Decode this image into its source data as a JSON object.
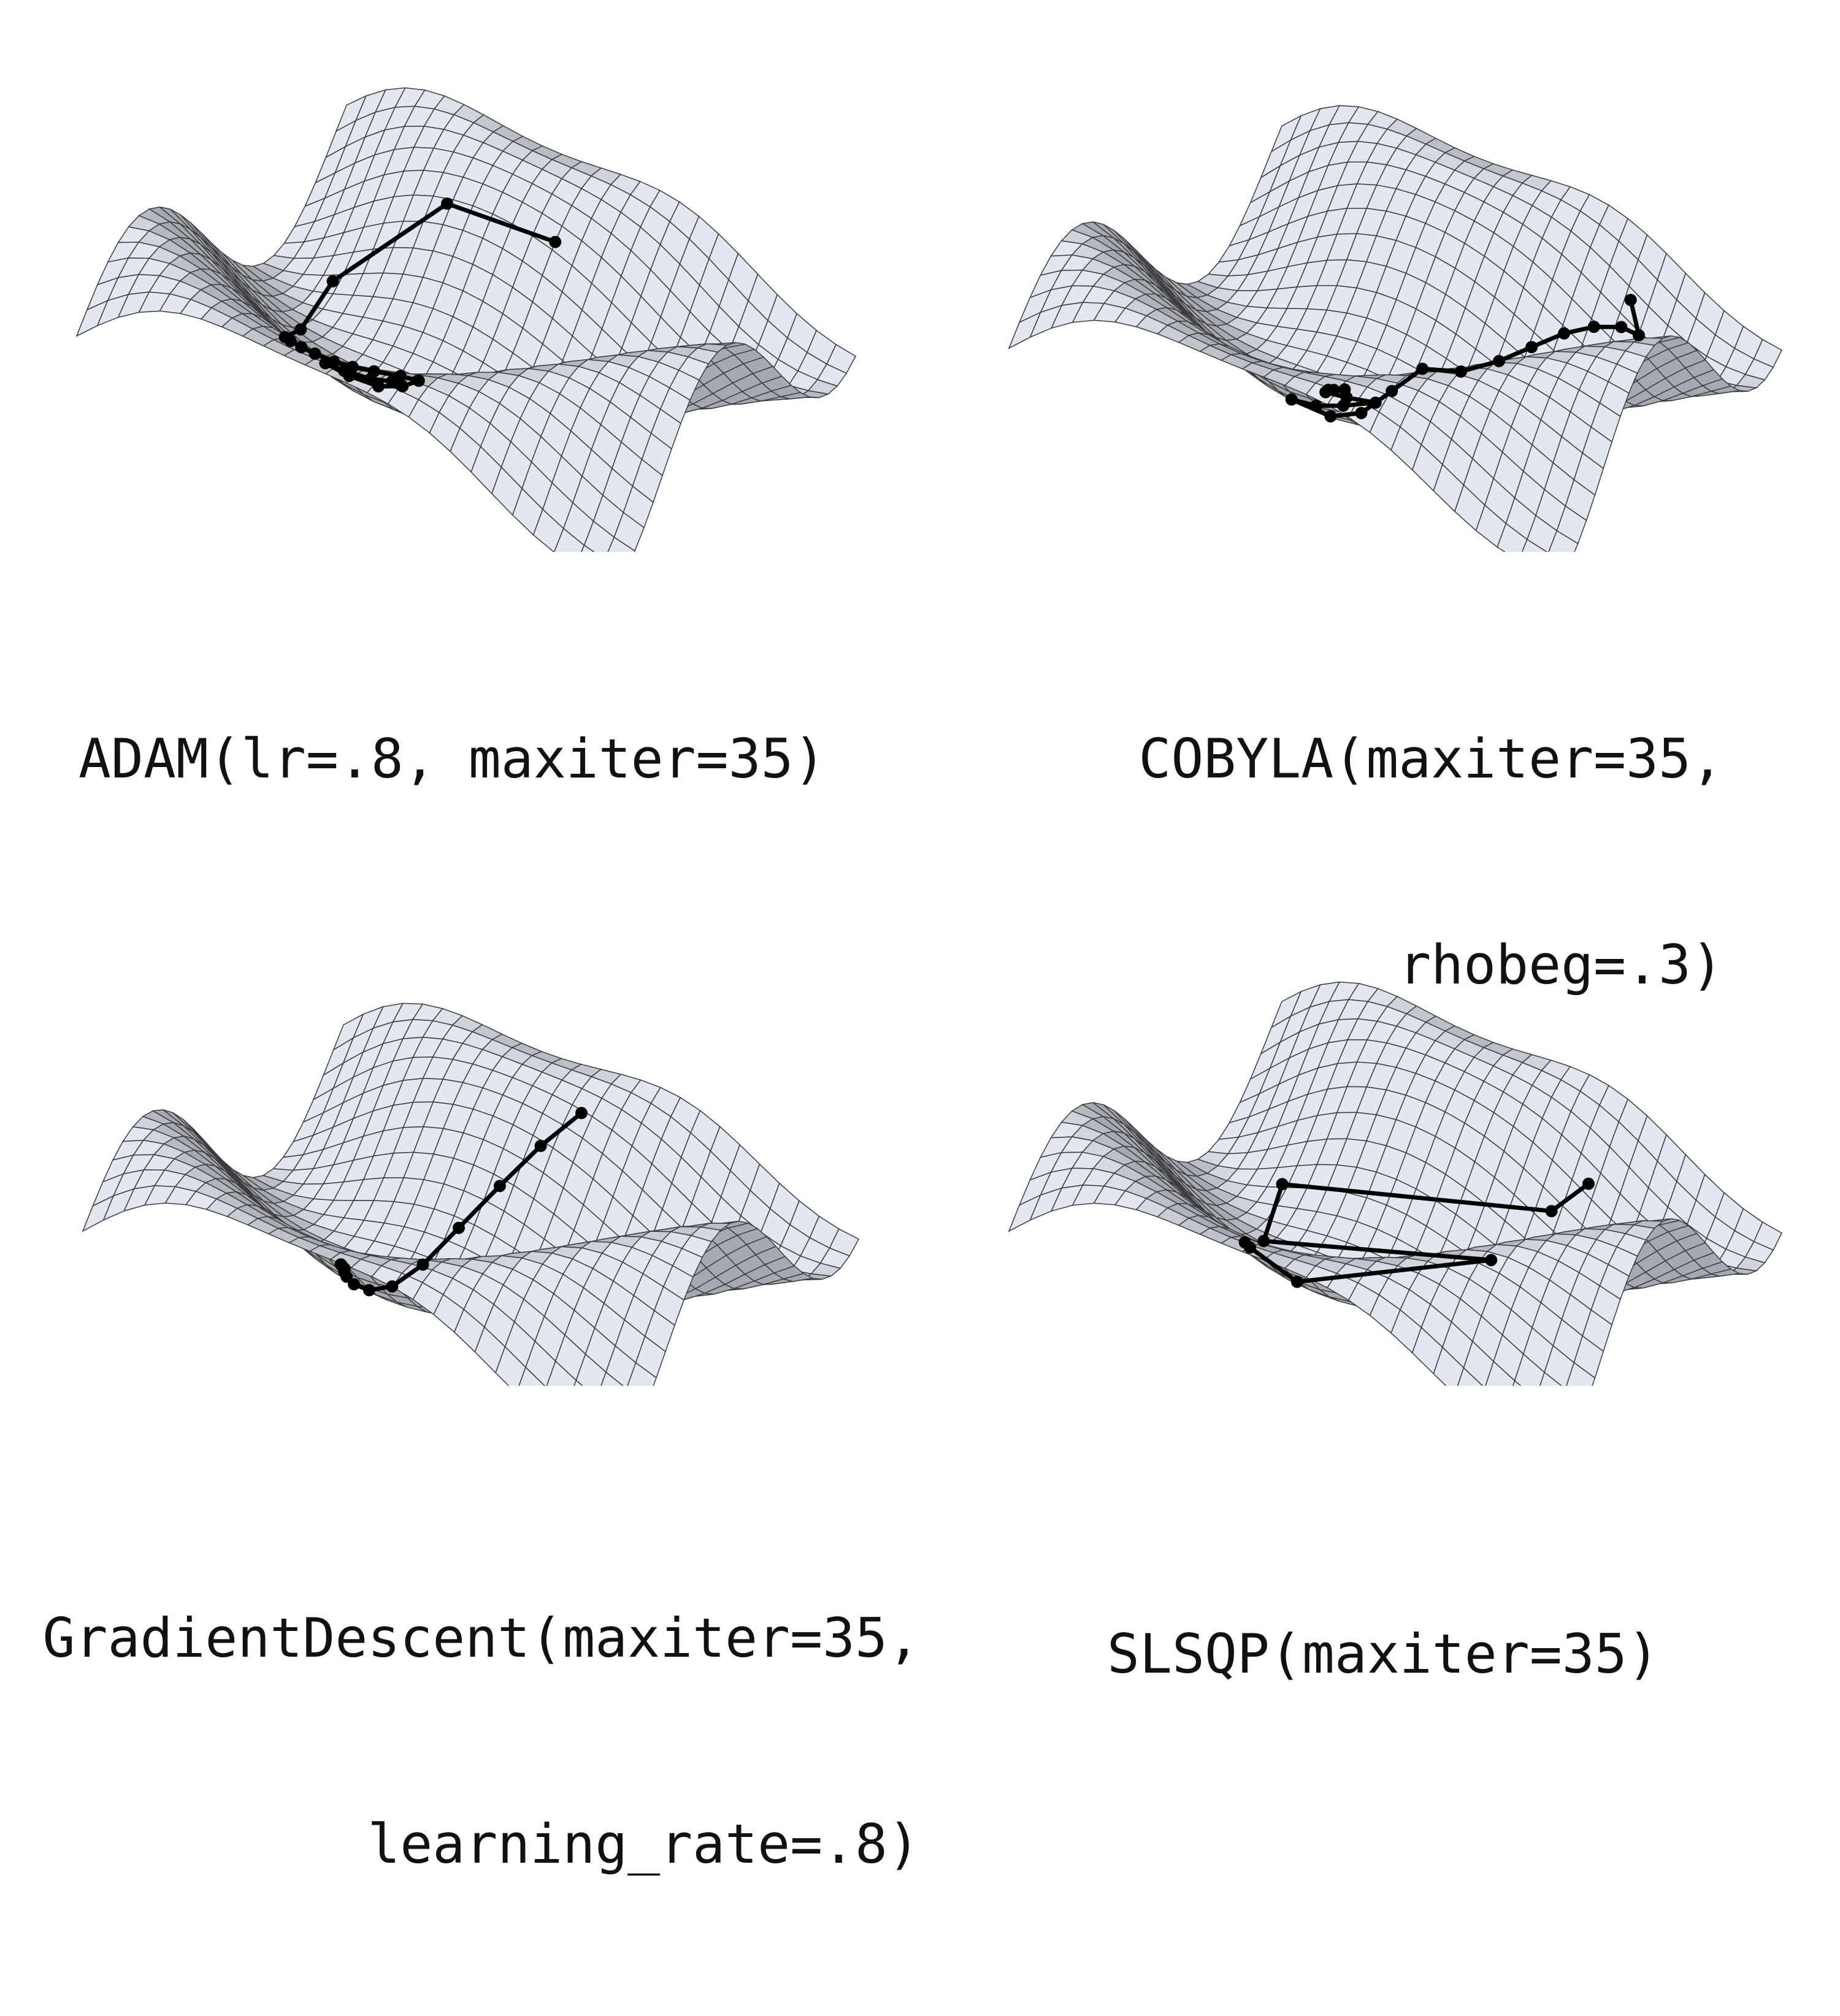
{
  "chart_data": [
    {
      "type": "surface",
      "title_lines": [
        "ADAM(lr=.8, maxiter=35)"
      ],
      "surface_color": "#cbced6",
      "path_color": "#000000",
      "series": [
        {
          "values": [
            [
              0.5,
              0.82
            ],
            [
              0.3,
              0.8
            ],
            [
              0.14,
              0.68
            ],
            [
              0.16,
              0.52
            ],
            [
              0.22,
              0.34
            ],
            [
              0.28,
              0.24
            ],
            [
              0.32,
              0.2
            ],
            [
              0.36,
              0.17
            ],
            [
              0.4,
              0.16
            ],
            [
              0.44,
              0.15
            ],
            [
              0.48,
              0.15
            ],
            [
              0.52,
              0.17
            ],
            [
              0.54,
              0.2
            ],
            [
              0.5,
              0.22
            ],
            [
              0.45,
              0.23
            ],
            [
              0.4,
              0.22
            ],
            [
              0.36,
              0.21
            ],
            [
              0.4,
              0.2
            ],
            [
              0.45,
              0.2
            ],
            [
              0.49,
              0.2
            ]
          ]
        }
      ]
    },
    {
      "type": "surface",
      "title_lines": [
        "COBYLA(maxiter=35,",
        "rhobeg=.3)"
      ],
      "surface_color": "#cbced6",
      "path_color": "#000000",
      "series": [
        {
          "values": [
            [
              0.74,
              0.91
            ],
            [
              0.77,
              0.88
            ],
            [
              0.74,
              0.87
            ],
            [
              0.7,
              0.84
            ],
            [
              0.66,
              0.8
            ],
            [
              0.62,
              0.75
            ],
            [
              0.58,
              0.7
            ],
            [
              0.53,
              0.65
            ],
            [
              0.47,
              0.62
            ],
            [
              0.44,
              0.56
            ],
            [
              0.42,
              0.48
            ],
            [
              0.4,
              0.4
            ],
            [
              0.36,
              0.33
            ],
            [
              0.42,
              0.3
            ],
            [
              0.48,
              0.28
            ],
            [
              0.54,
              0.28
            ],
            [
              0.5,
              0.25
            ],
            [
              0.47,
              0.23
            ],
            [
              0.49,
              0.22
            ],
            [
              0.51,
              0.22
            ],
            [
              0.48,
              0.22
            ]
          ]
        }
      ]
    },
    {
      "type": "surface",
      "title_lines": [
        "GradientDescent(maxiter=35,",
        "learning_rate=.8)"
      ],
      "surface_color": "#cbced6",
      "path_color": "#000000",
      "series": [
        {
          "values": [
            [
              0.52,
              0.88
            ],
            [
              0.48,
              0.8
            ],
            [
              0.44,
              0.72
            ],
            [
              0.4,
              0.64
            ],
            [
              0.37,
              0.56
            ],
            [
              0.35,
              0.48
            ],
            [
              0.34,
              0.41
            ],
            [
              0.34,
              0.35
            ],
            [
              0.35,
              0.3
            ],
            [
              0.36,
              0.27
            ],
            [
              0.37,
              0.25
            ],
            [
              0.37,
              0.24
            ],
            [
              0.37,
              0.235
            ]
          ]
        }
      ]
    },
    {
      "type": "surface",
      "title_lines": [
        "SLSQP(maxiter=35)"
      ],
      "surface_color": "#cbced6",
      "path_color": "#000000",
      "series": [
        {
          "values": [
            [
              0.68,
              0.86
            ],
            [
              0.64,
              0.79
            ],
            [
              0.18,
              0.66
            ],
            [
              0.22,
              0.51
            ],
            [
              0.72,
              0.36
            ],
            [
              0.38,
              0.31
            ],
            [
              0.33,
              0.23
            ],
            [
              0.33,
              0.21
            ]
          ]
        }
      ]
    }
  ]
}
